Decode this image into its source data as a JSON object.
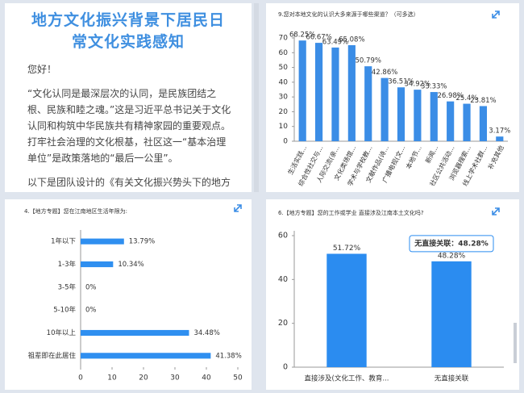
{
  "article": {
    "title": "地方文化振兴背景下居民日常文化实践感知",
    "paragraphs": [
      "您好！",
      "“文化认同是最深层次的认同，是民族团结之根、民族和睦之魂。”这是习近平总书记关于文化认同和构筑中华民族共有精神家园的重要观点。打牢社会治理的文化根基，社区这一“基本治理单位”是政策落地的“最后一公里”。",
      "以下是团队设计的《有关文化振兴势头下的地方精神文明建设：探居地区认知与认同情况调查问"
    ]
  },
  "chart_data": [
    {
      "type": "bar",
      "orientation": "vertical",
      "title": "9.您对本地文化的认识大多来源于哪些渠道？（可多选）",
      "categories": [
        "生活实践...",
        "综合性社交与...",
        "人际交流(亲...",
        "文化类场馆...",
        "学术与学校教...",
        "文献作品(诗...",
        "广播电视(文...",
        "本地节...",
        "新闻...",
        "社区公共活动...",
        "浏览器搜索...",
        "线上学术社群...",
        "补充其他"
      ],
      "values": [
        68.25,
        66.67,
        63.49,
        65.08,
        50.79,
        42.86,
        36.51,
        34.92,
        33.33,
        26.98,
        25.4,
        23.81,
        3.17
      ],
      "value_labels": [
        "68.25%",
        "66.67%",
        "63.49%",
        "65.08%",
        "50.79%",
        "42.86%",
        "36.51%",
        "34.92%",
        "33.33%",
        "26.98%",
        "25.4%",
        "23.81%",
        "3.17%"
      ],
      "color": "#3b8de6",
      "ylim": [
        0,
        70
      ],
      "yticks": [
        0,
        10,
        20,
        30,
        40,
        50,
        60,
        70
      ],
      "grid": false
    },
    {
      "type": "bar",
      "orientation": "horizontal",
      "title": "4.【地方专题】您在江南地区生活年限为:",
      "categories": [
        "1年以下",
        "1-3年",
        "3-5年",
        "5-10年",
        "10年以上",
        "祖辈即在此居住"
      ],
      "values": [
        13.79,
        10.34,
        0,
        0,
        34.48,
        41.38
      ],
      "value_labels": [
        "13.79%",
        "10.34%",
        "0%",
        "0%",
        "34.48%",
        "41.38%"
      ],
      "color": "#2f8ff0",
      "xlim": [
        0,
        50
      ],
      "xticks": [
        0,
        10,
        20,
        30,
        40,
        50
      ],
      "grid": false
    },
    {
      "type": "bar",
      "orientation": "vertical",
      "title": "6.【地方专题】您的工作或学业 直接涉及江南本土文化吗?",
      "categories": [
        "直接涉及(文化工作、教育...",
        "无直接关联"
      ],
      "values": [
        51.72,
        48.28
      ],
      "value_labels": [
        "51.72%",
        "48.28%"
      ],
      "tooltip": "无直接关联：48.28%",
      "color": "#2b8cf0",
      "ylim": [
        0,
        60
      ],
      "yticks": [
        0,
        20,
        40,
        60
      ],
      "grid": false
    }
  ]
}
